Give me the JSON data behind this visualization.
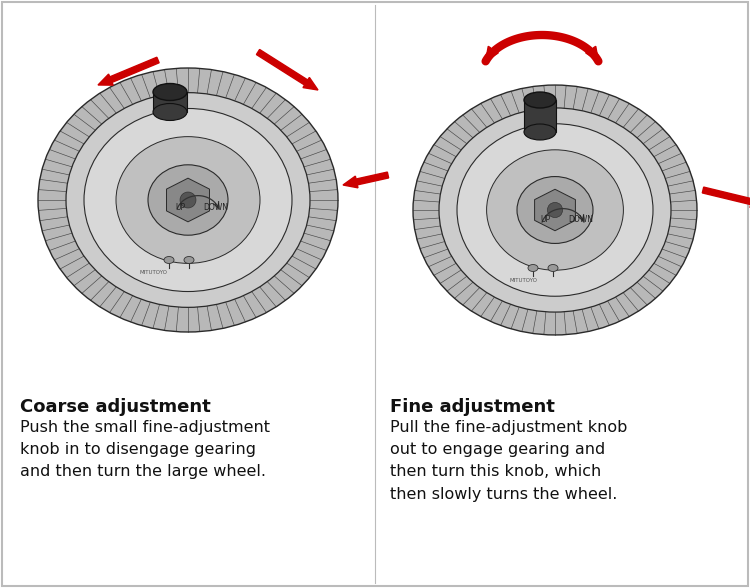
{
  "background_color": "#ffffff",
  "border_color": "#bbbbbb",
  "fig_width": 7.5,
  "fig_height": 5.88,
  "dpi": 100,
  "left_title": "Coarse adjustment",
  "left_body": "Push the small fine-adjustment\nknob in to disengage gearing\nand then turn the large wheel.",
  "right_title": "Fine adjustment",
  "right_body": "Pull the fine-adjustment knob\nout to engage gearing and\nthen turn this knob, which\nthen slowly turns the wheel.",
  "title_fontsize": 13,
  "body_fontsize": 11.5,
  "text_color": "#111111",
  "arrow_color": "#cc0000",
  "wheel_outer_color": "#b8b8b8",
  "wheel_mid_color": "#cccccc",
  "wheel_face_color": "#d8d8d8",
  "wheel_edge": "#2a2a2a",
  "hub_color": "#aaaaaa",
  "hex_color": "#888888",
  "knob_color": "#444444",
  "divider_color": "#bbbbbb"
}
